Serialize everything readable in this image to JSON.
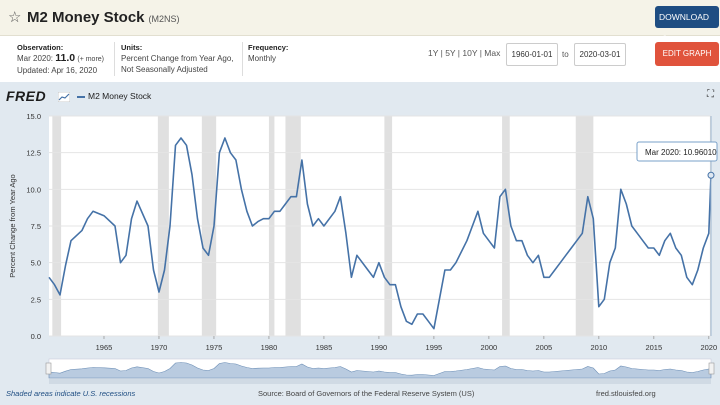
{
  "header": {
    "title": "M2 Money Stock",
    "series_id": "(M2NS)",
    "download_label": "DOWNLOAD"
  },
  "meta": {
    "observation_label": "Observation:",
    "observation_period": "Mar 2020:",
    "observation_value": "11.0",
    "observation_more": "(+ more)",
    "updated": "Updated: Apr 16, 2020",
    "units_label": "Units:",
    "units_line1": "Percent Change from Year Ago,",
    "units_line2": "Not Seasonally Adjusted",
    "frequency_label": "Frequency:",
    "frequency_value": "Monthly"
  },
  "controls": {
    "ranges": [
      "1Y",
      "5Y",
      "10Y",
      "Max"
    ],
    "start_date": "1960-01-01",
    "to_label": "to",
    "end_date": "2020-03-01",
    "edit_graph_label": "EDIT GRAPH"
  },
  "branding": {
    "logo": "FRED"
  },
  "legend": {
    "series_name": "M2 Money Stock"
  },
  "footer": {
    "recession_note": "Shaded areas indicate U.S. recessions",
    "source": "Source: Board of Governors of the Federal Reserve System (US)",
    "site": "fred.stlouisfed.org"
  },
  "tooltip": {
    "text": "Mar 2020: 10.96010"
  },
  "colors": {
    "line": "#4572a7",
    "recession": "#e0e0e0",
    "plot_bg": "#ffffff",
    "edit": "#e0533c",
    "download": "#1e4d82"
  },
  "chart_data": {
    "type": "line",
    "ylabel": "Percent Change from Year Ago",
    "xlabel": "",
    "ylim": [
      0,
      15
    ],
    "xlim": [
      1960.0,
      2020.2
    ],
    "y_ticks": [
      0.0,
      2.5,
      5.0,
      7.5,
      10.0,
      12.5,
      15.0
    ],
    "y_tick_labels": [
      "0.0",
      "2.5",
      "5.0",
      "7.5",
      "10.0",
      "12.5",
      "15.0"
    ],
    "x_ticks": [
      1965,
      1970,
      1975,
      1980,
      1985,
      1990,
      1995,
      2000,
      2005,
      2010,
      2015,
      2020
    ],
    "grid": "horizontal",
    "recessions": [
      [
        1960.3,
        1961.1
      ],
      [
        1969.9,
        1970.9
      ],
      [
        1973.9,
        1975.2
      ],
      [
        1980.0,
        1980.5
      ],
      [
        1981.5,
        1982.9
      ],
      [
        1990.5,
        1991.2
      ],
      [
        2001.2,
        2001.9
      ],
      [
        2007.9,
        2009.5
      ],
      [
        2020.1,
        2020.2
      ]
    ],
    "series": [
      {
        "name": "M2 Money Stock",
        "x": [
          1960.0,
          1960.5,
          1961.0,
          1961.5,
          1962.0,
          1963.0,
          1963.5,
          1964.0,
          1965.0,
          1966.0,
          1966.5,
          1967.0,
          1967.5,
          1968.0,
          1969.0,
          1969.5,
          1970.0,
          1970.5,
          1971.0,
          1971.5,
          1972.0,
          1972.5,
          1973.0,
          1973.5,
          1974.0,
          1974.5,
          1975.0,
          1975.5,
          1976.0,
          1976.5,
          1977.0,
          1977.5,
          1978.0,
          1978.5,
          1979.0,
          1979.5,
          1980.0,
          1980.5,
          1981.0,
          1981.5,
          1982.0,
          1982.5,
          1983.0,
          1983.5,
          1984.0,
          1984.5,
          1985.0,
          1986.0,
          1986.5,
          1987.0,
          1987.5,
          1988.0,
          1989.0,
          1989.5,
          1990.0,
          1990.5,
          1991.0,
          1991.5,
          1992.0,
          1992.5,
          1993.0,
          1993.5,
          1994.0,
          1994.5,
          1995.0,
          1995.5,
          1996.0,
          1996.5,
          1997.0,
          1998.0,
          1998.5,
          1999.0,
          1999.5,
          2000.0,
          2000.5,
          2001.0,
          2001.5,
          2002.0,
          2002.5,
          2003.0,
          2003.5,
          2004.0,
          2004.5,
          2005.0,
          2005.5,
          2006.0,
          2006.5,
          2007.0,
          2007.5,
          2008.0,
          2008.5,
          2009.0,
          2009.5,
          2010.0,
          2010.5,
          2011.0,
          2011.5,
          2012.0,
          2012.5,
          2013.0,
          2013.5,
          2014.0,
          2014.5,
          2015.0,
          2015.5,
          2016.0,
          2016.5,
          2017.0,
          2017.5,
          2018.0,
          2018.5,
          2019.0,
          2019.5,
          2020.0,
          2020.2
        ],
        "y": [
          4.0,
          3.5,
          2.8,
          4.8,
          6.5,
          7.2,
          8.0,
          8.5,
          8.2,
          7.5,
          5.0,
          5.5,
          8.0,
          9.2,
          7.5,
          4.5,
          3.0,
          4.5,
          7.5,
          13.0,
          13.5,
          13.0,
          11.0,
          8.0,
          6.0,
          5.5,
          7.5,
          12.5,
          13.5,
          12.5,
          12.0,
          10.0,
          8.5,
          7.5,
          7.8,
          8.0,
          8.0,
          8.5,
          8.5,
          9.0,
          9.5,
          9.5,
          12.0,
          9.0,
          7.5,
          8.0,
          7.5,
          8.5,
          9.5,
          7.0,
          4.0,
          5.5,
          4.5,
          4.0,
          5.0,
          4.0,
          3.5,
          3.5,
          2.0,
          1.0,
          0.8,
          1.5,
          1.5,
          1.0,
          0.5,
          2.5,
          4.5,
          4.5,
          5.0,
          6.5,
          7.5,
          8.5,
          7.0,
          6.5,
          6.0,
          9.5,
          10.0,
          7.5,
          6.5,
          6.5,
          5.5,
          5.0,
          5.5,
          4.0,
          4.0,
          4.5,
          5.0,
          5.5,
          6.0,
          6.5,
          7.0,
          9.5,
          8.0,
          2.0,
          2.5,
          5.0,
          6.0,
          10.0,
          9.0,
          7.5,
          7.0,
          6.5,
          6.0,
          6.0,
          5.5,
          6.5,
          7.0,
          6.0,
          5.5,
          4.0,
          3.5,
          4.5,
          6.0,
          7.0,
          11.0
        ]
      }
    ],
    "annotation": {
      "x": 2020.2,
      "y": 10.96,
      "label": "Mar 2020: 10.96010"
    }
  }
}
